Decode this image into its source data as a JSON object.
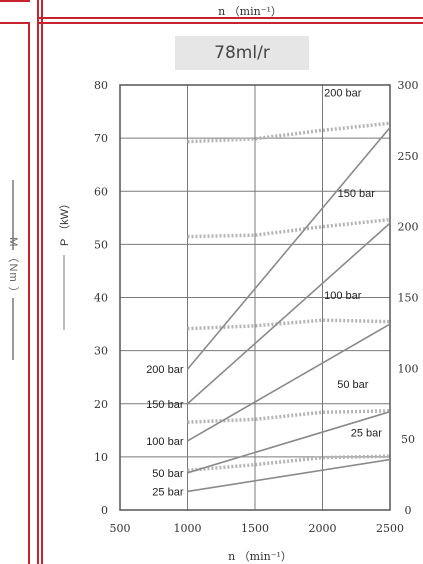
{
  "top_strip": {
    "axis_label": "n （min⁻¹）"
  },
  "left_panel": {
    "axis_label": "M （Nm ）"
  },
  "chart_data": {
    "type": "line",
    "title": "78ml/r",
    "xlabel": "n （min⁻¹）",
    "ylabel_left": "P （kW）",
    "xlim": [
      500,
      2500
    ],
    "ylim_left": [
      0,
      80
    ],
    "ylim_right": [
      0,
      300
    ],
    "x_ticks": [
      "500",
      "1000",
      "1500",
      "2000",
      "2500"
    ],
    "y_ticks_left": [
      "0",
      "10",
      "20",
      "30",
      "40",
      "50",
      "60",
      "70",
      "80"
    ],
    "y_ticks_right": [
      "0",
      "50",
      "100",
      "150",
      "200",
      "250",
      "300"
    ],
    "grid": true,
    "power_series": [
      {
        "name": "200 bar",
        "x": [
          1000,
          2500
        ],
        "y": [
          26.5,
          72
        ]
      },
      {
        "name": "150 bar",
        "x": [
          1000,
          2500
        ],
        "y": [
          20,
          54
        ]
      },
      {
        "name": "100 bar",
        "x": [
          1000,
          2500
        ],
        "y": [
          13,
          35
        ]
      },
      {
        "name": "50 bar",
        "x": [
          1000,
          2500
        ],
        "y": [
          7,
          18.5
        ]
      },
      {
        "name": "25 bar",
        "x": [
          1000,
          2500
        ],
        "y": [
          3.5,
          9.5
        ]
      }
    ],
    "torque_series": [
      {
        "name": "200 bar",
        "x": [
          1000,
          1500,
          2000,
          2500
        ],
        "y": [
          260,
          262,
          268,
          273
        ]
      },
      {
        "name": "150 bar",
        "x": [
          1000,
          1500,
          2000,
          2500
        ],
        "y": [
          193,
          194,
          200,
          205
        ]
      },
      {
        "name": "100 bar",
        "x": [
          1000,
          1500,
          2000,
          2500
        ],
        "y": [
          128,
          130,
          134,
          133
        ]
      },
      {
        "name": "50 bar",
        "x": [
          1000,
          1500,
          2000,
          2500
        ],
        "y": [
          62,
          64,
          69,
          70
        ]
      },
      {
        "name": "25 bar",
        "x": [
          1000,
          1500,
          2000,
          2500
        ],
        "y": [
          28,
          32,
          37,
          38
        ]
      }
    ],
    "colors": {
      "power_line": "#8a8a8a",
      "torque_line": "#b4b4b4",
      "grid": "#7a7a7a",
      "frame": "#c8232c"
    }
  }
}
